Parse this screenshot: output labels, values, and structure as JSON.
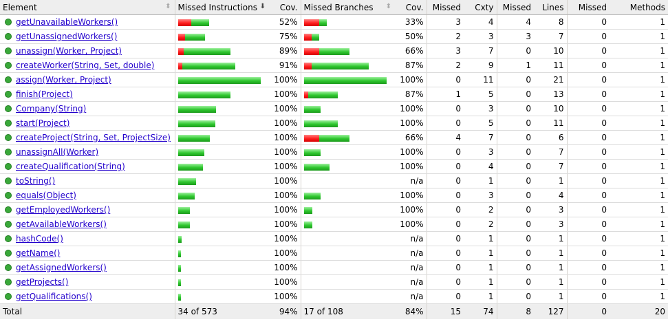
{
  "headers": {
    "element": "Element",
    "missed_instructions": "Missed Instructions",
    "instr_cov": "Cov.",
    "missed_branches": "Missed Branches",
    "branch_cov": "Cov.",
    "missed_cxty": "Missed",
    "cxty": "Cxty",
    "missed_lines": "Missed",
    "lines": "Lines",
    "missed_methods": "Missed",
    "methods": "Methods"
  },
  "sort_icons": {
    "neutral": "⬍",
    "active": "⬇"
  },
  "colors": {
    "missed": "#ff1e1e",
    "covered": "#2ec72e",
    "link": "#2200cc",
    "header_bg": "#eeeeee"
  },
  "rows": [
    {
      "name": "getUnavailableWorkers()",
      "ir": 0.16,
      "ig": 0.22,
      "ic": "52%",
      "br": 0.18,
      "bg": 0.09,
      "bc": "33%",
      "mc": "3",
      "cx": "4",
      "ml": "4",
      "ln": "8",
      "mm": "0",
      "mt": "1"
    },
    {
      "name": "getUnassignedWorkers()",
      "ir": 0.08,
      "ig": 0.24,
      "ic": "75%",
      "br": 0.09,
      "bg": 0.09,
      "bc": "50%",
      "mc": "2",
      "cx": "3",
      "ml": "3",
      "ln": "7",
      "mm": "0",
      "mt": "1"
    },
    {
      "name": "unassign(Worker, Project)",
      "ir": 0.07,
      "ig": 0.57,
      "ic": "89%",
      "br": 0.18,
      "bg": 0.37,
      "bc": "66%",
      "mc": "3",
      "cx": "7",
      "ml": "0",
      "ln": "10",
      "mm": "0",
      "mt": "1"
    },
    {
      "name": "createWorker(String, Set, double)",
      "ir": 0.05,
      "ig": 0.64,
      "ic": "91%",
      "br": 0.09,
      "bg": 0.69,
      "bc": "87%",
      "mc": "2",
      "cx": "9",
      "ml": "1",
      "ln": "11",
      "mm": "0",
      "mt": "1"
    },
    {
      "name": "assign(Worker, Project)",
      "ir": 0,
      "ig": 1.0,
      "ic": "100%",
      "br": 0,
      "bg": 1.0,
      "bc": "100%",
      "mc": "0",
      "cx": "11",
      "ml": "0",
      "ln": "21",
      "mm": "0",
      "mt": "1"
    },
    {
      "name": "finish(Project)",
      "ir": 0,
      "ig": 0.63,
      "ic": "100%",
      "br": 0.05,
      "bg": 0.36,
      "bc": "87%",
      "mc": "1",
      "cx": "5",
      "ml": "0",
      "ln": "13",
      "mm": "0",
      "mt": "1"
    },
    {
      "name": "Company(String)",
      "ir": 0,
      "ig": 0.46,
      "ic": "100%",
      "br": 0,
      "bg": 0.2,
      "bc": "100%",
      "mc": "0",
      "cx": "3",
      "ml": "0",
      "ln": "10",
      "mm": "0",
      "mt": "1"
    },
    {
      "name": "start(Project)",
      "ir": 0,
      "ig": 0.45,
      "ic": "100%",
      "br": 0,
      "bg": 0.41,
      "bc": "100%",
      "mc": "0",
      "cx": "5",
      "ml": "0",
      "ln": "11",
      "mm": "0",
      "mt": "1"
    },
    {
      "name": "createProject(String, Set, ProjectSize)",
      "ir": 0,
      "ig": 0.38,
      "ic": "100%",
      "br": 0.18,
      "bg": 0.37,
      "bc": "66%",
      "mc": "4",
      "cx": "7",
      "ml": "0",
      "ln": "6",
      "mm": "0",
      "mt": "1"
    },
    {
      "name": "unassignAll(Worker)",
      "ir": 0,
      "ig": 0.32,
      "ic": "100%",
      "br": 0,
      "bg": 0.2,
      "bc": "100%",
      "mc": "0",
      "cx": "3",
      "ml": "0",
      "ln": "7",
      "mm": "0",
      "mt": "1"
    },
    {
      "name": "createQualification(String)",
      "ir": 0,
      "ig": 0.3,
      "ic": "100%",
      "br": 0,
      "bg": 0.31,
      "bc": "100%",
      "mc": "0",
      "cx": "4",
      "ml": "0",
      "ln": "7",
      "mm": "0",
      "mt": "1"
    },
    {
      "name": "toString()",
      "ir": 0,
      "ig": 0.22,
      "ic": "100%",
      "br": 0,
      "bg": 0,
      "bc": "n/a",
      "mc": "0",
      "cx": "1",
      "ml": "0",
      "ln": "1",
      "mm": "0",
      "mt": "1"
    },
    {
      "name": "equals(Object)",
      "ir": 0,
      "ig": 0.2,
      "ic": "100%",
      "br": 0,
      "bg": 0.2,
      "bc": "100%",
      "mc": "0",
      "cx": "3",
      "ml": "0",
      "ln": "4",
      "mm": "0",
      "mt": "1"
    },
    {
      "name": "getEmployedWorkers()",
      "ir": 0,
      "ig": 0.14,
      "ic": "100%",
      "br": 0,
      "bg": 0.1,
      "bc": "100%",
      "mc": "0",
      "cx": "2",
      "ml": "0",
      "ln": "3",
      "mm": "0",
      "mt": "1"
    },
    {
      "name": "getAvailableWorkers()",
      "ir": 0,
      "ig": 0.14,
      "ic": "100%",
      "br": 0,
      "bg": 0.1,
      "bc": "100%",
      "mc": "0",
      "cx": "2",
      "ml": "0",
      "ln": "3",
      "mm": "0",
      "mt": "1"
    },
    {
      "name": "hashCode()",
      "ir": 0,
      "ig": 0.04,
      "ic": "100%",
      "br": 0,
      "bg": 0,
      "bc": "n/a",
      "mc": "0",
      "cx": "1",
      "ml": "0",
      "ln": "1",
      "mm": "0",
      "mt": "1"
    },
    {
      "name": "getName()",
      "ir": 0,
      "ig": 0.03,
      "ic": "100%",
      "br": 0,
      "bg": 0,
      "bc": "n/a",
      "mc": "0",
      "cx": "1",
      "ml": "0",
      "ln": "1",
      "mm": "0",
      "mt": "1"
    },
    {
      "name": "getAssignedWorkers()",
      "ir": 0,
      "ig": 0.03,
      "ic": "100%",
      "br": 0,
      "bg": 0,
      "bc": "n/a",
      "mc": "0",
      "cx": "1",
      "ml": "0",
      "ln": "1",
      "mm": "0",
      "mt": "1"
    },
    {
      "name": "getProjects()",
      "ir": 0,
      "ig": 0.03,
      "ic": "100%",
      "br": 0,
      "bg": 0,
      "bc": "n/a",
      "mc": "0",
      "cx": "1",
      "ml": "0",
      "ln": "1",
      "mm": "0",
      "mt": "1"
    },
    {
      "name": "getQualifications()",
      "ir": 0,
      "ig": 0.03,
      "ic": "100%",
      "br": 0,
      "bg": 0,
      "bc": "n/a",
      "mc": "0",
      "cx": "1",
      "ml": "0",
      "ln": "1",
      "mm": "0",
      "mt": "1"
    }
  ],
  "total": {
    "label": "Total",
    "missed_instructions": "34 of 573",
    "instr_cov": "94%",
    "missed_branches": "17 of 108",
    "branch_cov": "84%",
    "missed_cxty": "15",
    "cxty": "74",
    "missed_lines": "8",
    "lines": "127",
    "missed_methods": "0",
    "methods": "20"
  }
}
